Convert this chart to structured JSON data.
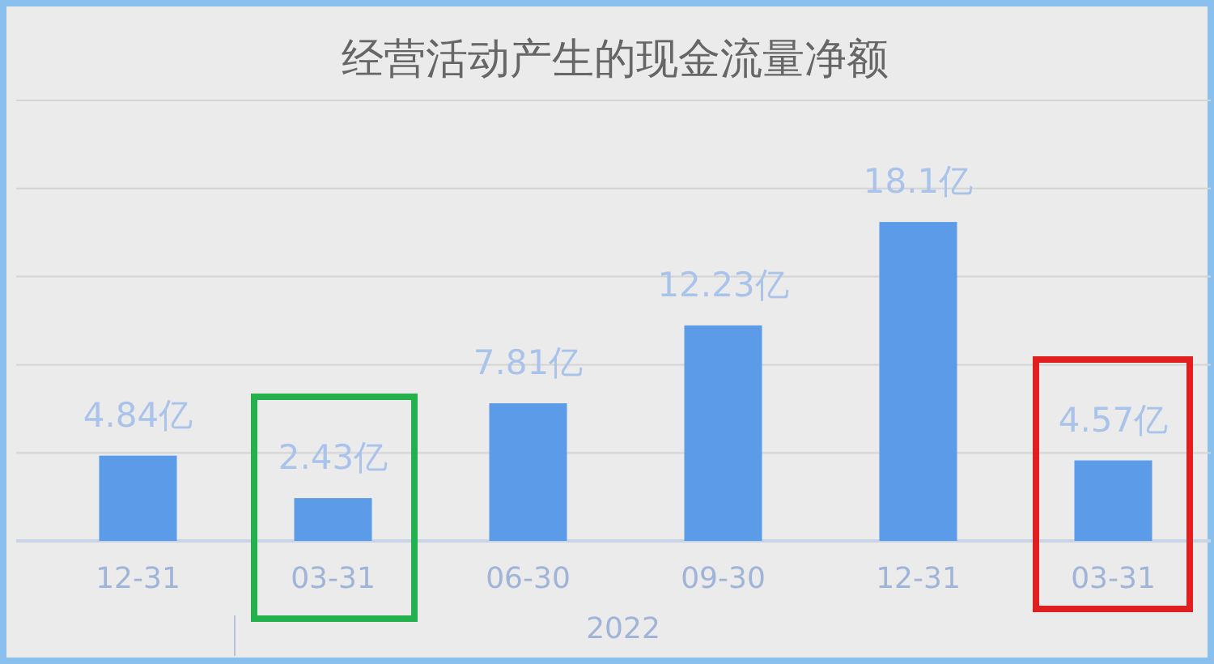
{
  "chart_data": {
    "type": "bar",
    "title": "经营活动产生的现金流量净额",
    "categories": [
      "12-31",
      "03-31",
      "06-30",
      "09-30",
      "12-31",
      "03-31"
    ],
    "values": [
      4.84,
      2.43,
      7.81,
      12.23,
      18.1,
      4.57
    ],
    "value_labels": [
      "4.84亿",
      "2.43亿",
      "7.81亿",
      "12.23亿",
      "18.1亿",
      "4.57亿"
    ],
    "color": "#5b9be8",
    "ylim": [
      0,
      25
    ],
    "yticks": [
      {
        "value": 5,
        "label": null
      },
      {
        "value": 10,
        "label": null
      },
      {
        "value": 15,
        "label": null
      },
      {
        "value": 20,
        "label": null
      },
      {
        "value": 25,
        "label": null
      }
    ],
    "grid": "y",
    "tick_labels": "x",
    "annotations": [
      "2022"
    ]
  }
}
